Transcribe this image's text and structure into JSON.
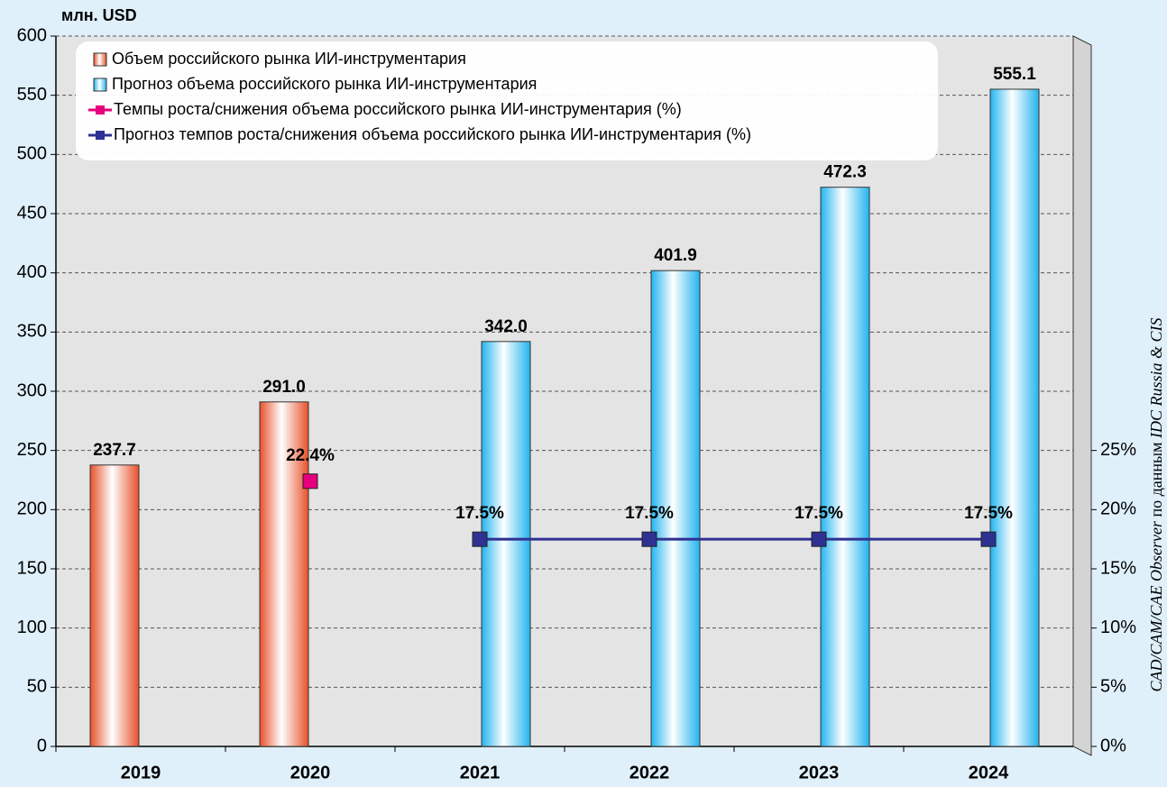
{
  "chart_data": {
    "type": "bar",
    "y_label": "млн. USD",
    "source": [
      "CAD/CAM/CAE Observer",
      "по данным",
      "IDC Russia & CIS"
    ],
    "categories": [
      "2019",
      "2020",
      "2021",
      "2022",
      "2023",
      "2024"
    ],
    "series": [
      {
        "name": "Объем российского рынка ИИ-инструментария",
        "type": "bar",
        "color": "#e8502a",
        "values": [
          237.7,
          291.0,
          null,
          null,
          null,
          null
        ],
        "value_labels": [
          "237.7",
          "291.0",
          null,
          null,
          null,
          null
        ]
      },
      {
        "name": "Прогноз объема российского  рынка ИИ-инструментария",
        "type": "bar",
        "color": "#22b4ee",
        "values": [
          null,
          null,
          342.0,
          401.9,
          472.3,
          555.1
        ],
        "value_labels": [
          null,
          null,
          "342.0",
          "401.9",
          "472.3",
          "555.1"
        ]
      },
      {
        "name": "Темпы роста/снижения объема российского рынка ИИ-инструментария (%)",
        "type": "line",
        "axis": "y2",
        "color": "#e6007e",
        "values": [
          null,
          22.4,
          null,
          null,
          null,
          null
        ],
        "value_labels": [
          null,
          "22.4%",
          null,
          null,
          null,
          null
        ]
      },
      {
        "name": "Прогноз темпов роста/снижения объема российского рынка ИИ-инструментария (%)",
        "type": "line",
        "axis": "y2",
        "color": "#2e3192",
        "values": [
          null,
          null,
          17.5,
          17.5,
          17.5,
          17.5
        ],
        "value_labels": [
          null,
          null,
          "17.5%",
          "17.5%",
          "17.5%",
          "17.5%"
        ]
      }
    ],
    "ylim": [
      0,
      600
    ],
    "yticks": [
      0,
      50,
      100,
      150,
      200,
      250,
      300,
      350,
      400,
      450,
      500,
      550,
      600
    ],
    "y2lim": [
      0,
      60
    ],
    "y2ticks": [
      {
        "value": 0,
        "label": "0%"
      },
      {
        "value": 5,
        "label": "5%"
      },
      {
        "value": 10,
        "label": "10%"
      },
      {
        "value": 15,
        "label": "15%"
      },
      {
        "value": 20,
        "label": "20%"
      },
      {
        "value": 25,
        "label": "25%"
      }
    ],
    "grid": true,
    "legend": "top-left"
  }
}
